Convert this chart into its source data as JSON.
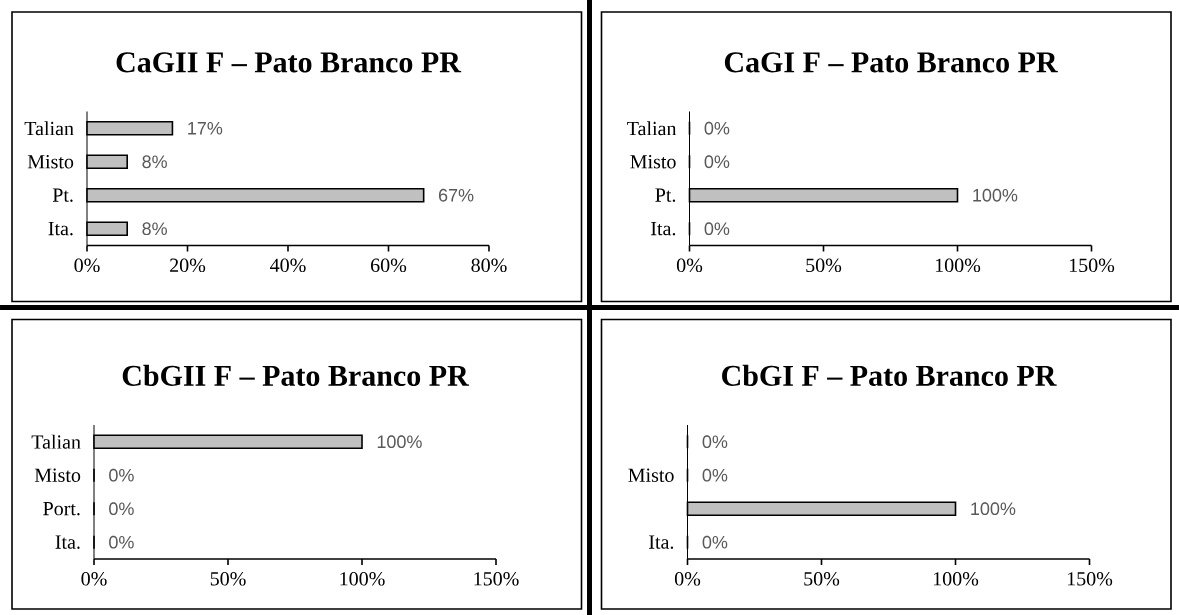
{
  "chart_data": [
    {
      "type": "bar",
      "orientation": "horizontal",
      "title": "CaGII F – Pato Branco PR",
      "categories": [
        "Talian",
        "Misto",
        "Pt.",
        "Ita."
      ],
      "values": [
        17,
        8,
        67,
        8
      ],
      "value_labels": [
        "17%",
        "8%",
        "67%",
        "8%"
      ],
      "color": "#c0c0c0",
      "xlim": [
        0,
        80
      ],
      "xticks": [
        {
          "value": 0,
          "label": "0%"
        },
        {
          "value": 20,
          "label": "20%"
        },
        {
          "value": 40,
          "label": "40%"
        },
        {
          "value": 60,
          "label": "60%"
        },
        {
          "value": 80,
          "label": "80%"
        }
      ]
    },
    {
      "type": "bar",
      "orientation": "horizontal",
      "title": "CaGI F – Pato Branco PR",
      "categories": [
        "Talian",
        "Misto",
        "Pt.",
        "Ita."
      ],
      "values": [
        0,
        0,
        100,
        0
      ],
      "value_labels": [
        "0%",
        "0%",
        "100%",
        "0%"
      ],
      "color": "#c0c0c0",
      "xlim": [
        0,
        150
      ],
      "xticks": [
        {
          "value": 0,
          "label": "0%"
        },
        {
          "value": 50,
          "label": "50%"
        },
        {
          "value": 100,
          "label": "100%"
        },
        {
          "value": 150,
          "label": "150%"
        }
      ]
    },
    {
      "type": "bar",
      "orientation": "horizontal",
      "title": "CbGII F – Pato Branco PR",
      "categories": [
        "Talian",
        "Misto",
        "Port.",
        "Ita."
      ],
      "values": [
        100,
        0,
        0,
        0
      ],
      "value_labels": [
        "100%",
        "0%",
        "0%",
        "0%"
      ],
      "color": "#c0c0c0",
      "xlim": [
        0,
        150
      ],
      "xticks": [
        {
          "value": 0,
          "label": "0%"
        },
        {
          "value": 50,
          "label": "50%"
        },
        {
          "value": 100,
          "label": "100%"
        },
        {
          "value": 150,
          "label": "150%"
        }
      ]
    },
    {
      "type": "bar",
      "orientation": "horizontal",
      "title": "CbGI F – Pato Branco PR",
      "categories": [
        null,
        "Misto",
        null,
        "Ita."
      ],
      "values": [
        0,
        0,
        100,
        0
      ],
      "value_labels": [
        "0%",
        "0%",
        "100%",
        "0%"
      ],
      "color": "#c0c0c0",
      "xlim": [
        0,
        150
      ],
      "xticks": [
        {
          "value": 0,
          "label": "0%"
        },
        {
          "value": 50,
          "label": "50%"
        },
        {
          "value": 100,
          "label": "100%"
        },
        {
          "value": 150,
          "label": "150%"
        }
      ]
    }
  ]
}
